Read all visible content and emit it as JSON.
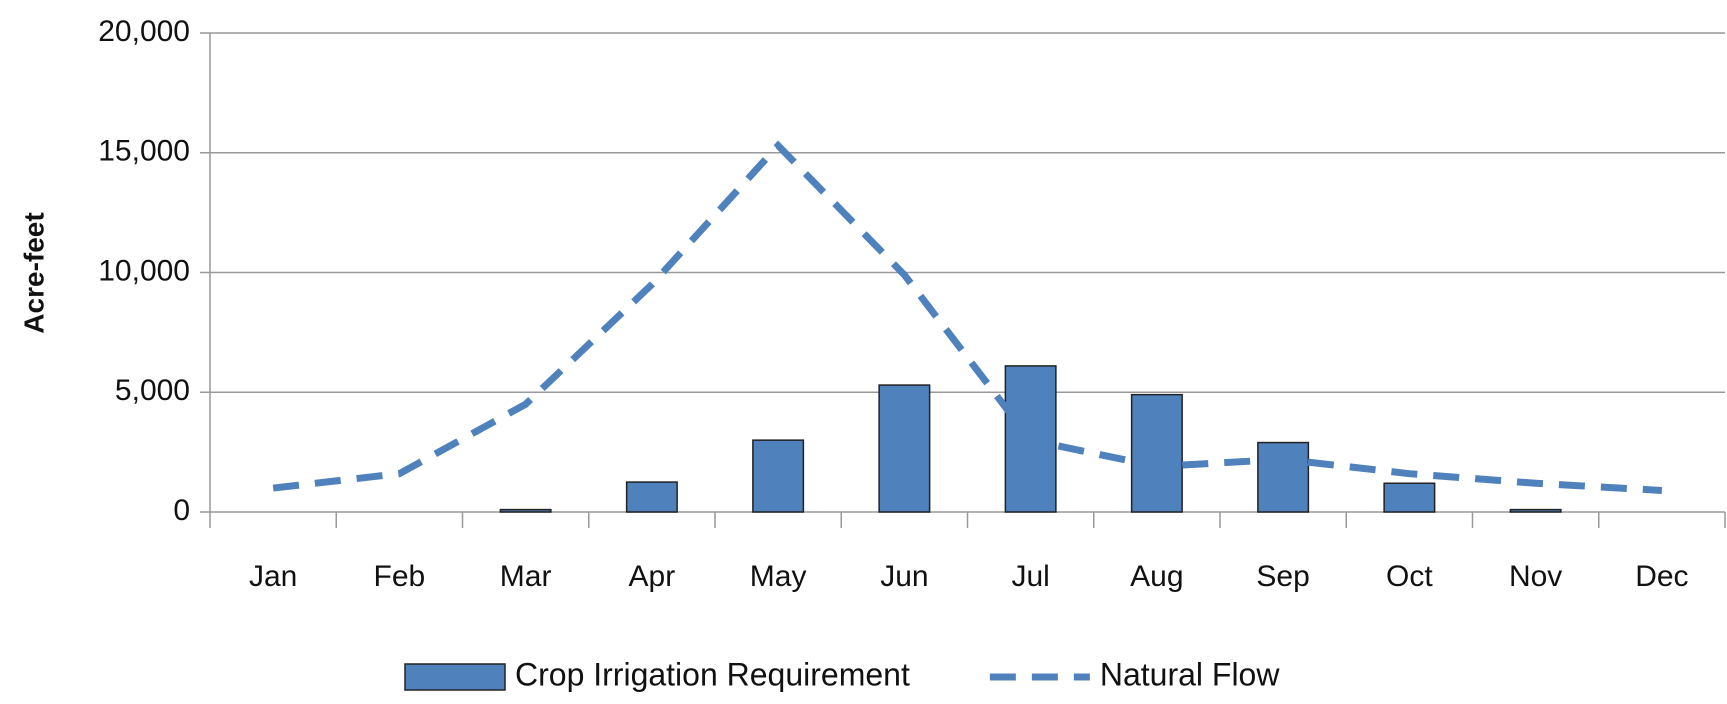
{
  "chart_data": {
    "type": "bar_line",
    "y_label": "Acre-feet",
    "categories": [
      "Jan",
      "Feb",
      "Mar",
      "Apr",
      "May",
      "Jun",
      "Jul",
      "Aug",
      "Sep",
      "Oct",
      "Nov",
      "Dec"
    ],
    "series": [
      {
        "name": "Crop Irrigation Requirement",
        "type": "bar",
        "color": "#4f81bd",
        "values": [
          0,
          0,
          100,
          1250,
          3000,
          5300,
          6100,
          4900,
          2900,
          1200,
          100,
          0
        ]
      },
      {
        "name": "Natural Flow",
        "type": "line",
        "color": "#4f81bd",
        "dashed": true,
        "values": [
          1000,
          1600,
          4500,
          9500,
          15300,
          9900,
          3000,
          1900,
          2200,
          1600,
          1200,
          900
        ]
      }
    ],
    "ylim": [
      0,
      20000
    ],
    "yticks": [
      0,
      {
        "value": 5000,
        "label": "5,000"
      },
      {
        "value": 10000,
        "label": "10,000"
      },
      {
        "value": 15000,
        "label": "15,000"
      },
      {
        "value": 20000,
        "label": "20,000"
      }
    ],
    "grid": true,
    "legend": "bottom"
  }
}
